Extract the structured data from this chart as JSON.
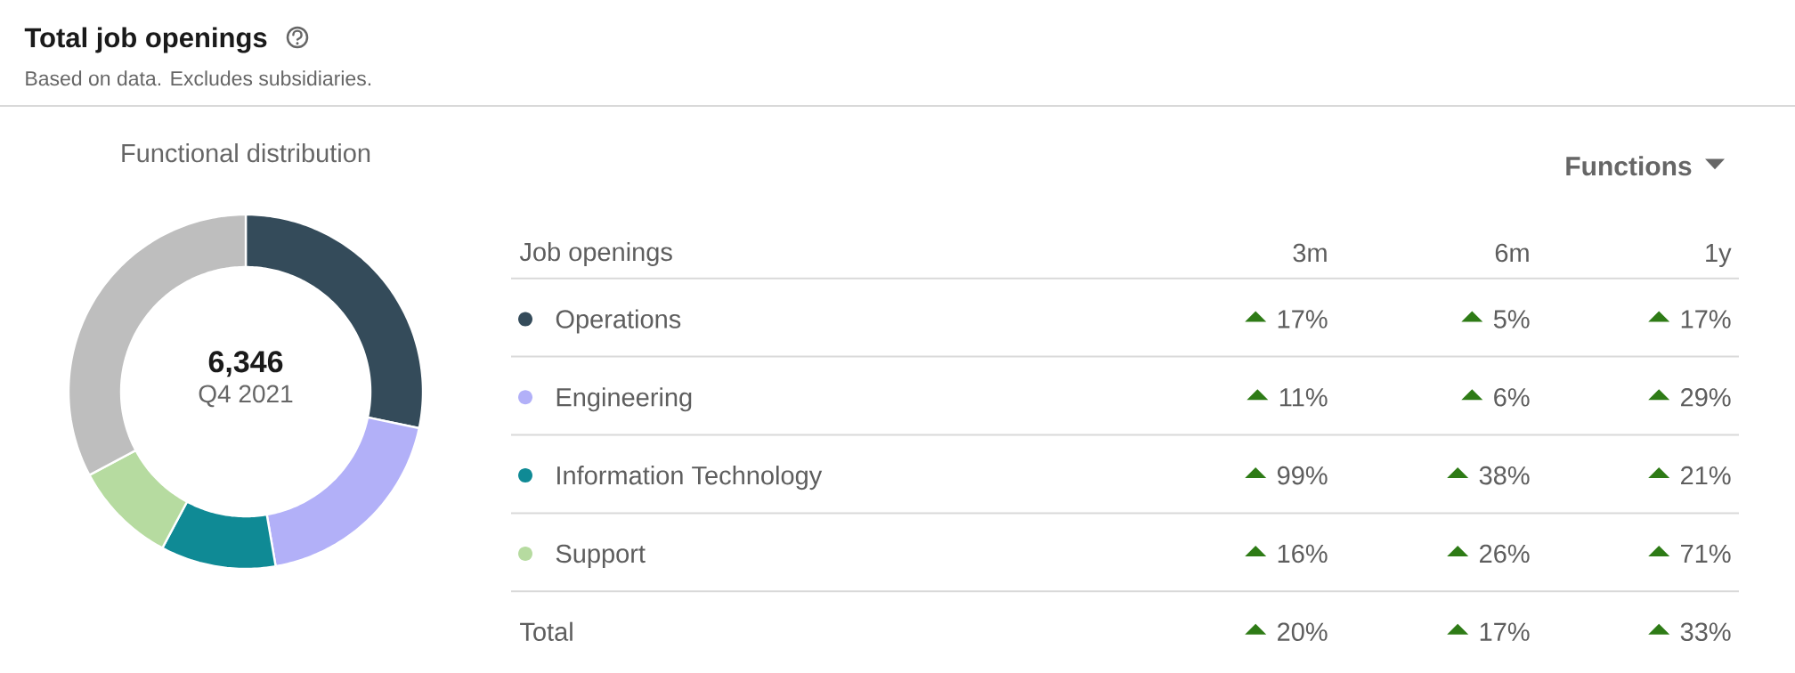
{
  "chart_data": [
    {
      "type": "other",
      "title": "Total job openings",
      "subtitle": "Based on data. Excludes subsidiaries."
    },
    {
      "type": "donut",
      "title": "Functional distribution",
      "categories": [
        "Operations",
        "Engineering",
        "Information Technology",
        "Support",
        null
      ],
      "values": [
        28.3,
        19.0,
        10.5,
        9.4,
        32.8
      ],
      "colors": [
        "#344b5a",
        "#b2b0f8",
        "#0f8a95",
        "#b6dba0",
        "#bebebe"
      ],
      "legend": "right",
      "legend_title": "Job openings",
      "annotations": [
        "6,346",
        "Q4 2021"
      ]
    },
    {
      "type": "other",
      "annotations": [
        "Functions",
        "3m",
        "6m",
        "1y",
        "17%",
        "5%",
        "17%",
        "11%",
        "6%",
        "29%",
        "99%",
        "38%",
        "21%",
        "16%",
        "26%",
        "71%",
        "Total",
        "20%",
        "17%",
        "33%"
      ]
    }
  ]
}
